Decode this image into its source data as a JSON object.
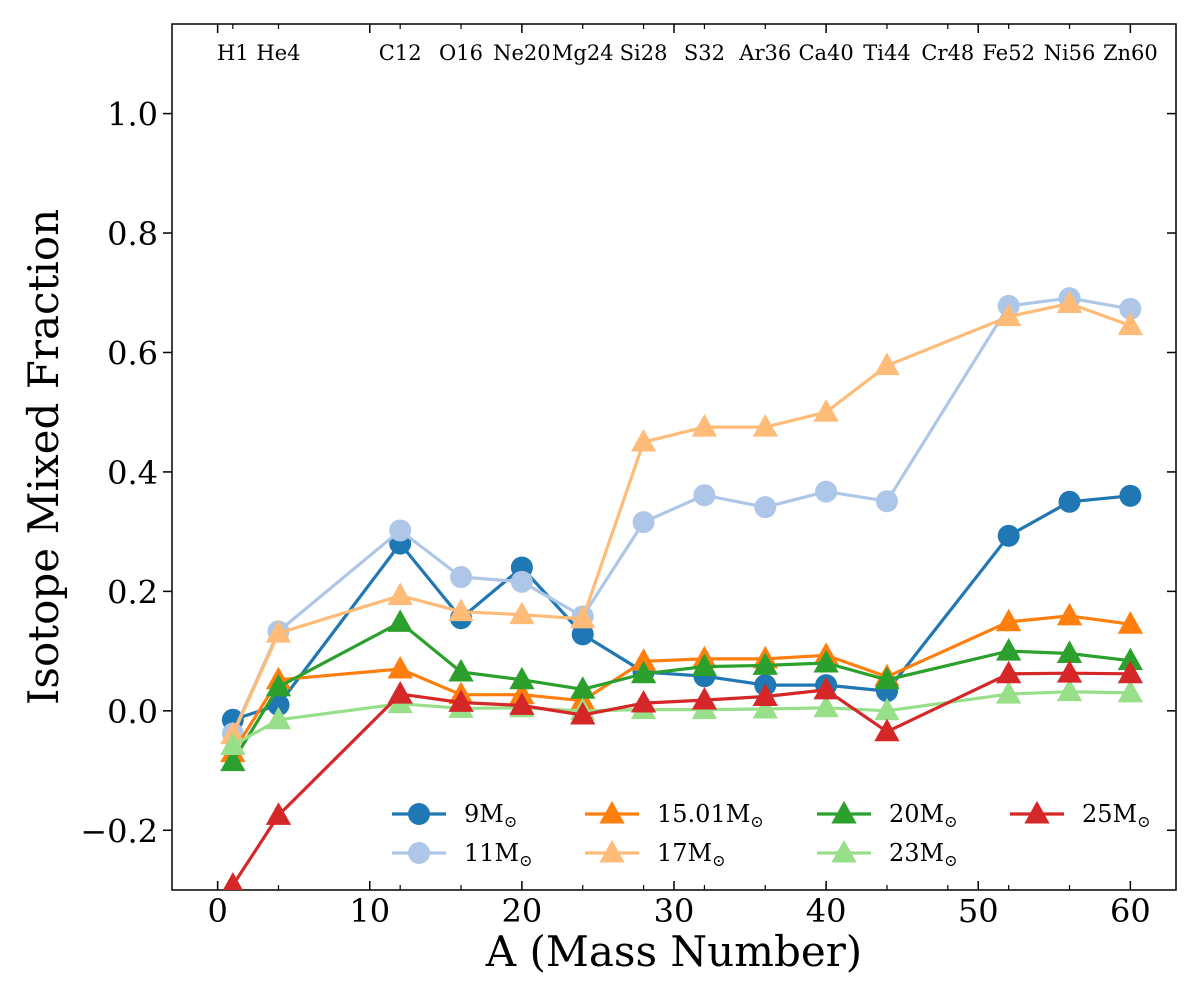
{
  "chart_data": {
    "type": "line",
    "title": "",
    "xlabel": "A (Mass Number)",
    "ylabel": "Isotope Mixed Fraction",
    "xlim": [
      -3,
      63
    ],
    "ylim": [
      -0.3,
      1.15
    ],
    "x_ticks": [
      0,
      10,
      20,
      30,
      40,
      50,
      60
    ],
    "x_tick_labels": [
      "0",
      "10",
      "20",
      "30",
      "40",
      "50",
      "60"
    ],
    "y_ticks": [
      -0.2,
      0.0,
      0.2,
      0.4,
      0.6,
      0.8,
      1.0
    ],
    "y_tick_labels": [
      "−0.2",
      "0.0",
      "0.2",
      "0.4",
      "0.6",
      "0.8",
      "1.0"
    ],
    "grid": false,
    "legend_position": "lower-right",
    "isotope_labels": [
      {
        "a": 1,
        "label": "H1"
      },
      {
        "a": 4,
        "label": "He4"
      },
      {
        "a": 12,
        "label": "C12"
      },
      {
        "a": 16,
        "label": "O16"
      },
      {
        "a": 20,
        "label": "Ne20"
      },
      {
        "a": 24,
        "label": "Mg24"
      },
      {
        "a": 28,
        "label": "Si28"
      },
      {
        "a": 32,
        "label": "S32"
      },
      {
        "a": 36,
        "label": "Ar36"
      },
      {
        "a": 40,
        "label": "Ca40"
      },
      {
        "a": 44,
        "label": "Ti44"
      },
      {
        "a": 48,
        "label": "Cr48"
      },
      {
        "a": 52,
        "label": "Fe52"
      },
      {
        "a": 56,
        "label": "Ni56"
      },
      {
        "a": 60,
        "label": "Zn60"
      }
    ],
    "series": [
      {
        "name": "9M",
        "subscript": "⊙",
        "color": "#1f77b4",
        "marker": "circle",
        "x": [
          1,
          4,
          12,
          16,
          20,
          24,
          28,
          32,
          36,
          40,
          44,
          52,
          56,
          60
        ],
        "values": [
          -0.015,
          0.01,
          0.28,
          0.155,
          0.24,
          0.128,
          0.065,
          0.058,
          0.043,
          0.043,
          0.033,
          0.293,
          0.35,
          0.36
        ]
      },
      {
        "name": "11M",
        "subscript": "⊙",
        "color": "#aec7e8",
        "marker": "circle",
        "x": [
          1,
          4,
          12,
          16,
          20,
          24,
          28,
          32,
          36,
          40,
          44,
          52,
          56,
          60
        ],
        "values": [
          -0.038,
          0.133,
          0.302,
          0.224,
          0.216,
          0.158,
          0.316,
          0.361,
          0.341,
          0.367,
          0.351,
          0.678,
          0.691,
          0.673
        ]
      },
      {
        "name": "15.01M",
        "subscript": "⊙",
        "color": "#ff7f0e",
        "marker": "triangle",
        "x": [
          1,
          4,
          12,
          16,
          20,
          24,
          28,
          32,
          36,
          40,
          44,
          52,
          56,
          60
        ],
        "values": [
          -0.07,
          0.052,
          0.07,
          0.027,
          0.027,
          0.017,
          0.083,
          0.087,
          0.087,
          0.093,
          0.057,
          0.149,
          0.159,
          0.145
        ]
      },
      {
        "name": "17M",
        "subscript": "⊙",
        "color": "#ffbb78",
        "marker": "triangle",
        "x": [
          1,
          4,
          12,
          16,
          20,
          24,
          28,
          32,
          36,
          40,
          44,
          52,
          56,
          60
        ],
        "values": [
          -0.04,
          0.13,
          0.193,
          0.166,
          0.161,
          0.154,
          0.45,
          0.475,
          0.475,
          0.5,
          0.578,
          0.66,
          0.682,
          0.645
        ]
      },
      {
        "name": "20M",
        "subscript": "⊙",
        "color": "#2ca02c",
        "marker": "triangle",
        "x": [
          1,
          4,
          12,
          16,
          20,
          24,
          28,
          32,
          36,
          40,
          44,
          52,
          56,
          60
        ],
        "values": [
          -0.085,
          0.04,
          0.148,
          0.065,
          0.052,
          0.036,
          0.062,
          0.074,
          0.076,
          0.08,
          0.052,
          0.1,
          0.096,
          0.084
        ]
      },
      {
        "name": "23M",
        "subscript": "⊙",
        "color": "#98df8a",
        "marker": "triangle",
        "x": [
          1,
          4,
          12,
          16,
          20,
          24,
          28,
          32,
          36,
          40,
          44,
          52,
          56,
          60
        ],
        "values": [
          -0.058,
          -0.015,
          0.012,
          0.004,
          0.005,
          0.0,
          0.002,
          0.002,
          0.003,
          0.005,
          0.0,
          0.028,
          0.032,
          0.03
        ]
      },
      {
        "name": "25M",
        "subscript": "⊙",
        "color": "#d62728",
        "marker": "triangle",
        "x": [
          1,
          4,
          12,
          16,
          20,
          24,
          28,
          32,
          36,
          40,
          44,
          52,
          56,
          60
        ],
        "values": [
          -0.292,
          -0.175,
          0.028,
          0.014,
          0.009,
          -0.007,
          0.013,
          0.018,
          0.024,
          0.035,
          -0.035,
          0.062,
          0.063,
          0.062
        ]
      }
    ]
  }
}
